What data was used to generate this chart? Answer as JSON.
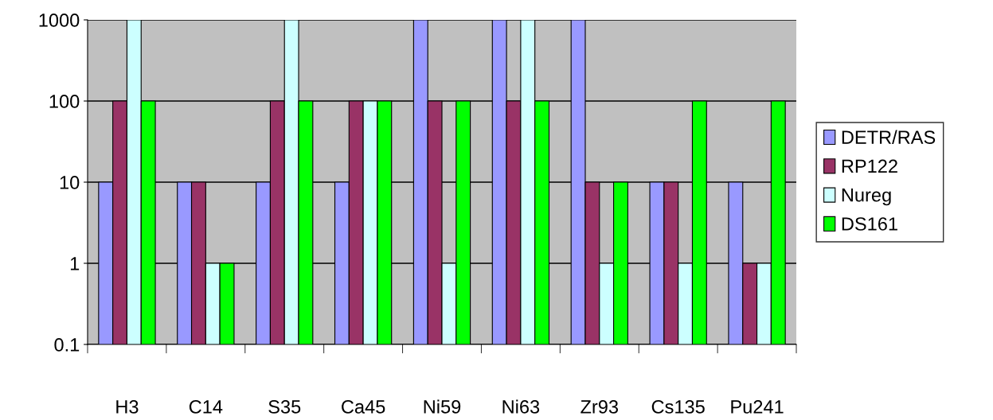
{
  "chart_data": {
    "type": "bar",
    "categories": [
      "H3",
      "C14",
      "S35",
      "Ca45",
      "Ni59",
      "Ni63",
      "Zr93",
      "Cs135",
      "Pu241"
    ],
    "series": [
      {
        "name": "DETR/RAS",
        "color": "#9999ff",
        "values": [
          10,
          10,
          10,
          10,
          1000,
          1000,
          1000,
          10,
          10
        ]
      },
      {
        "name": "RP122",
        "color": "#993366",
        "values": [
          100,
          10,
          100,
          100,
          100,
          100,
          10,
          10,
          1
        ]
      },
      {
        "name": "Nureg",
        "color": "#ccffff",
        "values": [
          1000,
          1,
          1000,
          100,
          1,
          1000,
          1,
          1,
          1
        ]
      },
      {
        "name": "DS161",
        "color": "#00ff00",
        "values": [
          100,
          1,
          100,
          100,
          100,
          100,
          10,
          100,
          100
        ]
      }
    ],
    "log": true,
    "ylim": [
      0.1,
      1000
    ],
    "yticks": [
      0.1,
      1,
      10,
      100,
      1000
    ],
    "grid": "y",
    "legend": "right"
  }
}
